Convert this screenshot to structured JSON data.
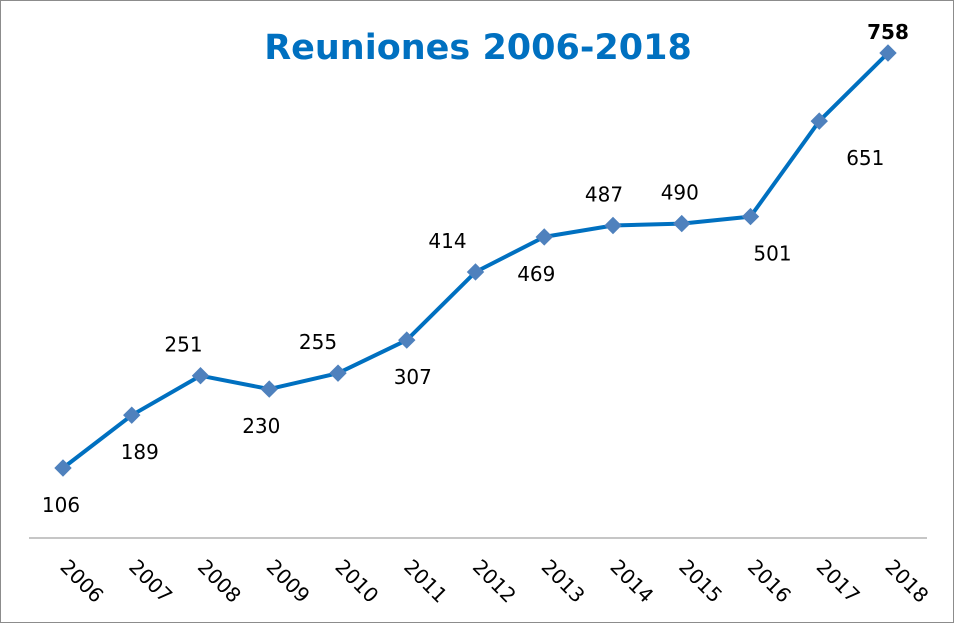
{
  "chart_data": {
    "type": "line",
    "title": "Reuniones 2006-2018",
    "xlabel": "",
    "ylabel": "",
    "categories": [
      "2006",
      "2007",
      "2008",
      "2009",
      "2010",
      "2011",
      "2012",
      "2013",
      "2014",
      "2015",
      "2016",
      "2017",
      "2018"
    ],
    "series": [
      {
        "values": [
          106,
          189,
          251,
          230,
          255,
          307,
          414,
          469,
          487,
          490,
          501,
          651,
          758
        ],
        "labels": [
          "106",
          "189",
          "251",
          "230",
          "255",
          "307",
          "414",
          "469",
          "487",
          "490",
          "501",
          "651",
          "758"
        ],
        "color": "#0070c0",
        "marker_color": "#4f81bd",
        "marker": "diamond"
      }
    ],
    "grid": false,
    "legend": "none",
    "title_color": "#0070c0",
    "axis_color": "#8c8c8c"
  }
}
